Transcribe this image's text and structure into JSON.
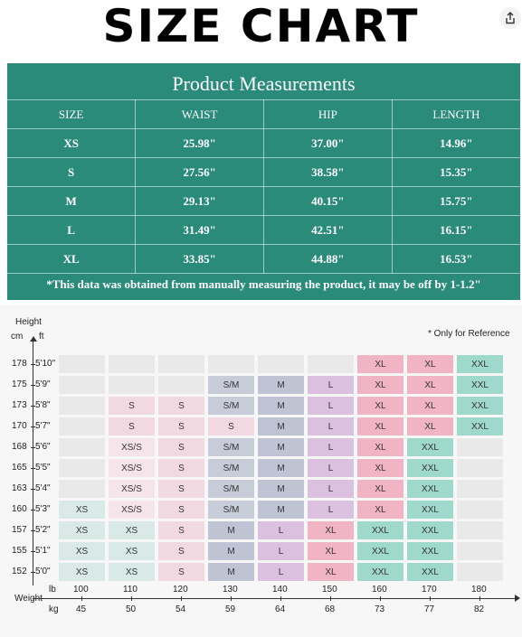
{
  "title": "SIZE CHART",
  "share_icon": "share-icon",
  "measurements": {
    "title": "Product Measurements",
    "headers": [
      "SIZE",
      "WAIST",
      "HIP",
      "LENGTH"
    ],
    "rows": [
      [
        "XS",
        "25.98\"",
        "37.00\"",
        "14.96\""
      ],
      [
        "S",
        "27.56\"",
        "38.58\"",
        "15.35\""
      ],
      [
        "M",
        "29.13\"",
        "40.15\"",
        "15.75\""
      ],
      [
        "L",
        "31.49\"",
        "42.51\"",
        "16.15\""
      ],
      [
        "XL",
        "33.85\"",
        "44.88\"",
        "16.53\""
      ]
    ],
    "note": "*This data was obtained from manually measuring the product, it may be off by 1-1.2\""
  },
  "chart": {
    "height_label": "Height",
    "cm_label": "cm",
    "ft_label": "ft",
    "reference_note": "* Only for Reference",
    "weight_label": "Weight",
    "lb_label": "lb",
    "kg_label": "kg",
    "rows": [
      {
        "cm": "178",
        "ft": "5'10\"",
        "sizes": [
          "",
          "",
          "",
          "",
          "",
          "",
          "XL",
          "XL",
          "XXL"
        ]
      },
      {
        "cm": "175",
        "ft": "5'9\"",
        "sizes": [
          "",
          "",
          "",
          "S/M",
          "M",
          "L",
          "XL",
          "XL",
          "XXL"
        ]
      },
      {
        "cm": "173",
        "ft": "5'8\"",
        "sizes": [
          "",
          "S",
          "S",
          "S/M",
          "M",
          "L",
          "XL",
          "XL",
          "XXL"
        ]
      },
      {
        "cm": "170",
        "ft": "5'7\"",
        "sizes": [
          "",
          "S",
          "S",
          "S",
          "M",
          "L",
          "XL",
          "XL",
          "XXL"
        ]
      },
      {
        "cm": "168",
        "ft": "5'6\"",
        "sizes": [
          "",
          "XS/S",
          "S",
          "S/M",
          "M",
          "L",
          "XL",
          "XXL",
          ""
        ]
      },
      {
        "cm": "165",
        "ft": "5'5\"",
        "sizes": [
          "",
          "XS/S",
          "S",
          "S/M",
          "M",
          "L",
          "XL",
          "XXL",
          ""
        ]
      },
      {
        "cm": "163",
        "ft": "5'4\"",
        "sizes": [
          "",
          "XS/S",
          "S",
          "S/M",
          "M",
          "L",
          "XL",
          "XXL",
          ""
        ]
      },
      {
        "cm": "160",
        "ft": "5'3\"",
        "sizes": [
          "XS",
          "XS/S",
          "S",
          "S/M",
          "M",
          "L",
          "XL",
          "XXL",
          ""
        ]
      },
      {
        "cm": "157",
        "ft": "5'2\"",
        "sizes": [
          "XS",
          "XS",
          "S",
          "M",
          "L",
          "XL",
          "XXL",
          "XXL",
          ""
        ]
      },
      {
        "cm": "155",
        "ft": "5'1\"",
        "sizes": [
          "XS",
          "XS",
          "S",
          "M",
          "L",
          "XL",
          "XXL",
          "XXL",
          ""
        ]
      },
      {
        "cm": "152",
        "ft": "5'0\"",
        "sizes": [
          "XS",
          "XS",
          "S",
          "M",
          "L",
          "XL",
          "XXL",
          "XXL",
          ""
        ]
      }
    ],
    "lb": [
      "100",
      "110",
      "120",
      "130",
      "140",
      "150",
      "160",
      "170",
      "180"
    ],
    "kg": [
      "45",
      "50",
      "54",
      "59",
      "64",
      "68",
      "73",
      "77",
      "82"
    ],
    "colors": {
      "XS": "#d9e9e6",
      "XS/S": "#f5e4ea",
      "S": "#f2d9e1",
      "S/M": "#c8ccd8",
      "M": "#bfc4d4",
      "L": "#dcc0e0",
      "XL": "#f0b4c4",
      "XXL": "#9fd9cc",
      "": "#e9e9e9"
    }
  }
}
